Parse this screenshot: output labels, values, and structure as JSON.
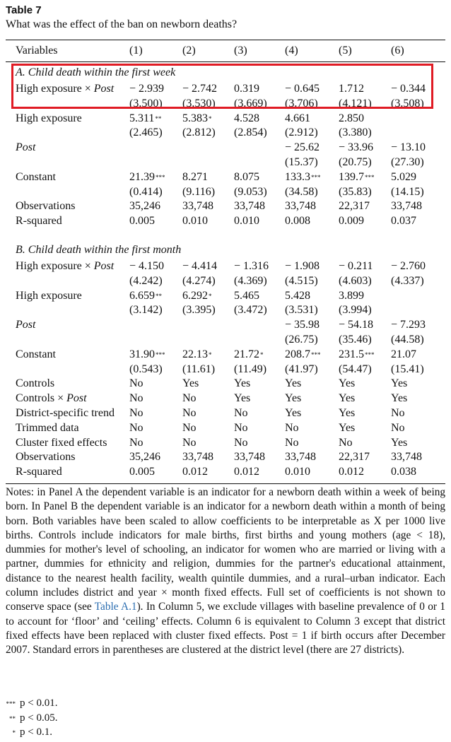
{
  "table_label": "Table 7",
  "subtitle": "What was the effect of the ban on newborn deaths?",
  "columns": [
    "Variables",
    "(1)",
    "(2)",
    "(3)",
    "(4)",
    "(5)",
    "(6)"
  ],
  "panel_a": {
    "title": "A. Child death within the first week",
    "rows": [
      {
        "label": "High exposure × Post",
        "cells": [
          [
            "− 2.939",
            ""
          ],
          [
            "− 2.742",
            ""
          ],
          [
            "0.319",
            ""
          ],
          [
            "− 0.645",
            ""
          ],
          [
            "1.712",
            ""
          ],
          [
            "− 0.344",
            ""
          ]
        ]
      },
      {
        "label": "",
        "cells": [
          [
            "(3.500)",
            ""
          ],
          [
            "(3.530)",
            ""
          ],
          [
            "(3.669)",
            ""
          ],
          [
            "(3.706)",
            ""
          ],
          [
            "(4.121)",
            ""
          ],
          [
            "(3.508)",
            ""
          ]
        ]
      },
      {
        "label": "High exposure",
        "cells": [
          [
            "5.311",
            "**"
          ],
          [
            "5.383",
            "*"
          ],
          [
            "4.528",
            ""
          ],
          [
            "4.661",
            ""
          ],
          [
            "2.850",
            ""
          ],
          [
            "",
            ""
          ]
        ]
      },
      {
        "label": "",
        "cells": [
          [
            "(2.465)",
            ""
          ],
          [
            "(2.812)",
            ""
          ],
          [
            "(2.854)",
            ""
          ],
          [
            "(2.912)",
            ""
          ],
          [
            "(3.380)",
            ""
          ],
          [
            "",
            ""
          ]
        ]
      },
      {
        "label": "Post",
        "cells": [
          [
            "",
            ""
          ],
          [
            "",
            ""
          ],
          [
            "",
            ""
          ],
          [
            "− 25.62",
            ""
          ],
          [
            "− 33.96",
            ""
          ],
          [
            "− 13.10",
            ""
          ]
        ]
      },
      {
        "label": "",
        "cells": [
          [
            "",
            ""
          ],
          [
            "",
            ""
          ],
          [
            "",
            ""
          ],
          [
            "(15.37)",
            ""
          ],
          [
            "(20.75)",
            ""
          ],
          [
            "(27.30)",
            ""
          ]
        ]
      },
      {
        "label": "Constant",
        "cells": [
          [
            "21.39",
            "***"
          ],
          [
            "8.271",
            ""
          ],
          [
            "8.075",
            ""
          ],
          [
            "133.3",
            "***"
          ],
          [
            "139.7",
            "***"
          ],
          [
            "5.029",
            ""
          ]
        ]
      },
      {
        "label": "",
        "cells": [
          [
            "(0.414)",
            ""
          ],
          [
            "(9.116)",
            ""
          ],
          [
            "(9.053)",
            ""
          ],
          [
            "(34.58)",
            ""
          ],
          [
            "(35.83)",
            ""
          ],
          [
            "(14.15)",
            ""
          ]
        ]
      },
      {
        "label": "Observations",
        "cells": [
          [
            "35,246",
            ""
          ],
          [
            "33,748",
            ""
          ],
          [
            "33,748",
            ""
          ],
          [
            "33,748",
            ""
          ],
          [
            "22,317",
            ""
          ],
          [
            "33,748",
            ""
          ]
        ]
      },
      {
        "label": "R-squared",
        "cells": [
          [
            "0.005",
            ""
          ],
          [
            "0.010",
            ""
          ],
          [
            "0.010",
            ""
          ],
          [
            "0.008",
            ""
          ],
          [
            "0.009",
            ""
          ],
          [
            "0.037",
            ""
          ]
        ]
      }
    ]
  },
  "panel_b": {
    "title": "B. Child death within the first month",
    "rows": [
      {
        "label": "High exposure × Post",
        "cells": [
          [
            "− 4.150",
            ""
          ],
          [
            "− 4.414",
            ""
          ],
          [
            "− 1.316",
            ""
          ],
          [
            "− 1.908",
            ""
          ],
          [
            "− 0.211",
            ""
          ],
          [
            "− 2.760",
            ""
          ]
        ]
      },
      {
        "label": "",
        "cells": [
          [
            "(4.242)",
            ""
          ],
          [
            "(4.274)",
            ""
          ],
          [
            "(4.369)",
            ""
          ],
          [
            "(4.515)",
            ""
          ],
          [
            "(4.603)",
            ""
          ],
          [
            "(4.337)",
            ""
          ]
        ]
      },
      {
        "label": "High exposure",
        "cells": [
          [
            "6.659",
            "**"
          ],
          [
            "6.292",
            "*"
          ],
          [
            "5.465",
            ""
          ],
          [
            "5.428",
            ""
          ],
          [
            "3.899",
            ""
          ],
          [
            "",
            ""
          ]
        ]
      },
      {
        "label": "",
        "cells": [
          [
            "(3.142)",
            ""
          ],
          [
            "(3.395)",
            ""
          ],
          [
            "(3.472)",
            ""
          ],
          [
            "(3.531)",
            ""
          ],
          [
            "(3.994)",
            ""
          ],
          [
            "",
            ""
          ]
        ]
      },
      {
        "label": "Post",
        "cells": [
          [
            "",
            ""
          ],
          [
            "",
            ""
          ],
          [
            "",
            ""
          ],
          [
            "− 35.98",
            ""
          ],
          [
            "− 54.18",
            ""
          ],
          [
            "− 7.293",
            ""
          ]
        ]
      },
      {
        "label": "",
        "cells": [
          [
            "",
            ""
          ],
          [
            "",
            ""
          ],
          [
            "",
            ""
          ],
          [
            "(26.75)",
            ""
          ],
          [
            "(35.46)",
            ""
          ],
          [
            "(44.58)",
            ""
          ]
        ]
      },
      {
        "label": "Constant",
        "cells": [
          [
            "31.90",
            "***"
          ],
          [
            "22.13",
            "*"
          ],
          [
            "21.72",
            "*"
          ],
          [
            "208.7",
            "***"
          ],
          [
            "231.5",
            "***"
          ],
          [
            "21.07",
            ""
          ]
        ]
      },
      {
        "label": "",
        "cells": [
          [
            "(0.543)",
            ""
          ],
          [
            "(11.61)",
            ""
          ],
          [
            "(11.49)",
            ""
          ],
          [
            "(41.97)",
            ""
          ],
          [
            "(54.47)",
            ""
          ],
          [
            "(15.41)",
            ""
          ]
        ]
      },
      {
        "label": "Controls",
        "cells": [
          [
            "No",
            ""
          ],
          [
            "Yes",
            ""
          ],
          [
            "Yes",
            ""
          ],
          [
            "Yes",
            ""
          ],
          [
            "Yes",
            ""
          ],
          [
            "Yes",
            ""
          ]
        ]
      },
      {
        "label": "Controls × Post",
        "cells": [
          [
            "No",
            ""
          ],
          [
            "No",
            ""
          ],
          [
            "Yes",
            ""
          ],
          [
            "Yes",
            ""
          ],
          [
            "Yes",
            ""
          ],
          [
            "Yes",
            ""
          ]
        ]
      },
      {
        "label": "District-specific trend",
        "cells": [
          [
            "No",
            ""
          ],
          [
            "No",
            ""
          ],
          [
            "No",
            ""
          ],
          [
            "Yes",
            ""
          ],
          [
            "Yes",
            ""
          ],
          [
            "No",
            ""
          ]
        ]
      },
      {
        "label": "Trimmed data",
        "cells": [
          [
            "No",
            ""
          ],
          [
            "No",
            ""
          ],
          [
            "No",
            ""
          ],
          [
            "No",
            ""
          ],
          [
            "Yes",
            ""
          ],
          [
            "No",
            ""
          ]
        ]
      },
      {
        "label": "Cluster fixed effects",
        "cells": [
          [
            "No",
            ""
          ],
          [
            "No",
            ""
          ],
          [
            "No",
            ""
          ],
          [
            "No",
            ""
          ],
          [
            "No",
            ""
          ],
          [
            "Yes",
            ""
          ]
        ]
      },
      {
        "label": "Observations",
        "cells": [
          [
            "35,246",
            ""
          ],
          [
            "33,748",
            ""
          ],
          [
            "33,748",
            ""
          ],
          [
            "33,748",
            ""
          ],
          [
            "22,317",
            ""
          ],
          [
            "33,748",
            ""
          ]
        ]
      },
      {
        "label": "R-squared",
        "cells": [
          [
            "0.005",
            ""
          ],
          [
            "0.012",
            ""
          ],
          [
            "0.012",
            ""
          ],
          [
            "0.010",
            ""
          ],
          [
            "0.012",
            ""
          ],
          [
            "0.038",
            ""
          ]
        ]
      }
    ]
  },
  "notes": {
    "part1": "Notes: in Panel A the dependent variable is an indicator for a newborn death within a week of being born. In Panel B the dependent variable is an indicator for a newborn death within a month of being born. Both variables have been scaled to allow coefficients to be interpretable as X per 1000 live births. Controls include indicators for male births, first births and young mothers (age < 18), dummies for mother's level of schooling, an indicator for women who are married or living with a partner, dummies for ethnicity and religion, dummies for the partner's educational attainment, distance to the nearest health facility, wealth quintile dummies, and a rural–urban indicator. Each column includes district and year × month fixed effects. Full set of coefficients is not shown to conserve space (see ",
    "link": "Table A.1",
    "part2": "). In Column 5, we exclude villages with baseline prevalence of 0 or 1 to account for ‘floor’ and ‘ceiling’ effects. Column 6 is equivalent to Column 3 except that district fixed effects have been replaced with cluster fixed effects. Post = 1 if birth occurs after December 2007. Standard errors in parentheses are clustered at the district level (there are 27 districts)."
  },
  "significance": [
    {
      "stars": "***",
      "text": "p < 0.01."
    },
    {
      "stars": "**",
      "text": "p < 0.05."
    },
    {
      "stars": "*",
      "text": "p < 0.1."
    }
  ]
}
